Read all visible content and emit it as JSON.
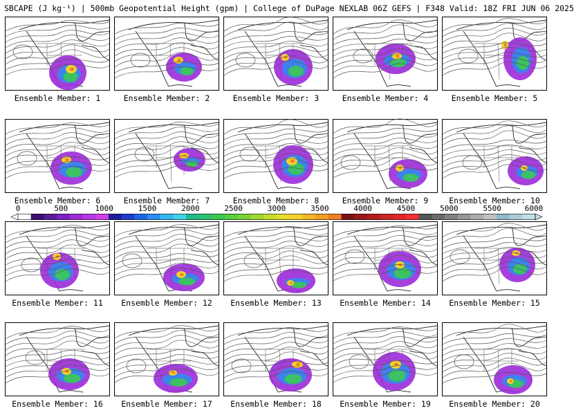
{
  "header": {
    "title": "SBCAPE (J kg⁻¹) | 500mb Geopotential Height (gpm) | College of DuPage NEXLAB 06Z GEFS | F348 Valid: 18Z FRI JUN 06 2025"
  },
  "members": [
    {
      "label": "Ensemble Member: 1"
    },
    {
      "label": "Ensemble Member: 2"
    },
    {
      "label": "Ensemble Member: 3"
    },
    {
      "label": "Ensemble Member: 4"
    },
    {
      "label": "Ensemble Member: 5"
    },
    {
      "label": "Ensemble Member: 6"
    },
    {
      "label": "Ensemble Member: 7"
    },
    {
      "label": "Ensemble Member: 8"
    },
    {
      "label": "Ensemble Member: 9"
    },
    {
      "label": "Ensemble Member: 10"
    },
    {
      "label": "Ensemble Member: 11"
    },
    {
      "label": "Ensemble Member: 12"
    },
    {
      "label": "Ensemble Member: 13"
    },
    {
      "label": "Ensemble Member: 14"
    },
    {
      "label": "Ensemble Member: 15"
    },
    {
      "label": "Ensemble Member: 16"
    },
    {
      "label": "Ensemble Member: 17"
    },
    {
      "label": "Ensemble Member: 18"
    },
    {
      "label": "Ensemble Member: 19"
    },
    {
      "label": "Ensemble Member: 20"
    }
  ],
  "colorbar": {
    "ticks": [
      "0",
      "500",
      "1000",
      "1500",
      "2000",
      "2500",
      "3000",
      "3500",
      "4000",
      "4500",
      "5000",
      "5500",
      "6000"
    ],
    "colors": [
      "#ffffff",
      "#3a0f6e",
      "#5a1a9a",
      "#7a22c2",
      "#9b2bd8",
      "#b835e6",
      "#d23fea",
      "#1e1e9a",
      "#1c3cc8",
      "#1f66e6",
      "#2a8ef0",
      "#36b4f0",
      "#3fd4e8",
      "#22b88a",
      "#2ec070",
      "#3cc853",
      "#56d040",
      "#7ad436",
      "#a0d832",
      "#c6dc2e",
      "#e4de2a",
      "#f2d22a",
      "#f2b82a",
      "#f29e28",
      "#ee7f26",
      "#7a1414",
      "#9a1a1a",
      "#b41e1e",
      "#cc2424",
      "#e02a2a",
      "#f23030",
      "#555555",
      "#6a6a6a",
      "#808080",
      "#969696",
      "#acacac",
      "#c2c2c2",
      "#8fb8c8",
      "#a8ccd8",
      "#c4dde6"
    ]
  }
}
